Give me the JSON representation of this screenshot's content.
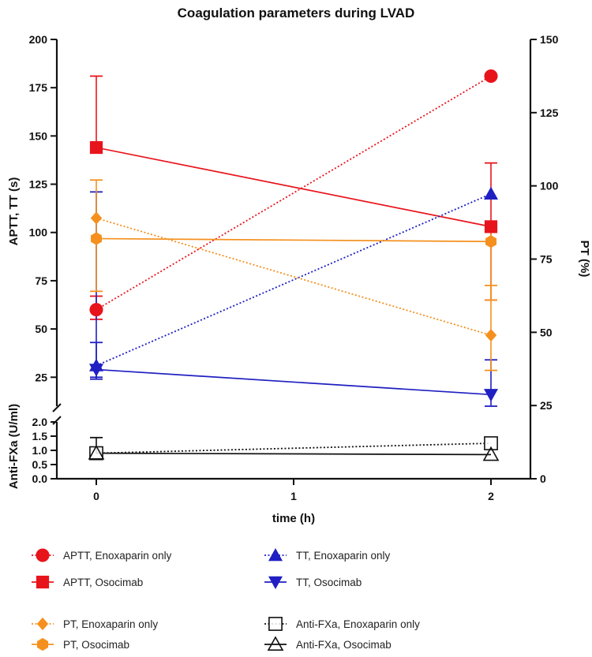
{
  "chart_data": {
    "type": "line",
    "title": "Coagulation parameters during LVAD",
    "xlabel": "time (h)",
    "x_ticks": [
      "0",
      "1",
      "2"
    ],
    "xlim": [
      -0.2,
      2.2
    ],
    "ylabel_left_upper": "APTT, TT (s)",
    "ylabel_left_lower": "Anti-FXa (U/ml)",
    "ylabel_right": "PT (%)",
    "y_left_upper": {
      "range": [
        10,
        200
      ],
      "ticks": [
        {
          "value": 25,
          "label": "25"
        },
        {
          "value": 50,
          "label": "50"
        },
        {
          "value": 75,
          "label": "75"
        },
        {
          "value": 100,
          "label": "100"
        },
        {
          "value": 125,
          "label": "125"
        },
        {
          "value": 150,
          "label": "150"
        },
        {
          "value": 175,
          "label": "175"
        },
        {
          "value": 200,
          "label": "200"
        }
      ]
    },
    "y_left_lower": {
      "range": [
        0,
        2
      ],
      "ticks": [
        {
          "value": 0,
          "label": "0.0"
        },
        {
          "value": 0.5,
          "label": "0.5"
        },
        {
          "value": 1,
          "label": "1.0"
        },
        {
          "value": 1.5,
          "label": "1.5"
        },
        {
          "value": 2,
          "label": "2.0"
        }
      ]
    },
    "y_right": {
      "range": [
        0,
        150
      ],
      "ticks": [
        {
          "value": 0,
          "label": "0"
        },
        {
          "value": 25,
          "label": "25"
        },
        {
          "value": 50,
          "label": "50"
        },
        {
          "value": 75,
          "label": "75"
        },
        {
          "value": 100,
          "label": "100"
        },
        {
          "value": 125,
          "label": "125"
        },
        {
          "value": 150,
          "label": "150"
        }
      ]
    },
    "series": [
      {
        "name": "APTT, Enoxaparin only",
        "axis": "left_upper",
        "color": "#e8141c",
        "marker": "circle",
        "line": "dotted",
        "x": [
          0,
          2
        ],
        "y": [
          60,
          181
        ],
        "err_low": [
          55,
          null
        ],
        "err_high": [
          67,
          null
        ]
      },
      {
        "name": "APTT, Osocimab",
        "axis": "left_upper",
        "color": "#e8141c",
        "marker": "square",
        "line": "solid",
        "x": [
          0,
          2
        ],
        "y": [
          144,
          103
        ],
        "err_low": [
          null,
          65
        ],
        "err_high": [
          181,
          136
        ]
      },
      {
        "name": "TT, Enoxaparin only",
        "axis": "left_upper",
        "color": "#1f1fc2",
        "marker": "triangle-up",
        "line": "dotted",
        "x": [
          0,
          2
        ],
        "y": [
          31,
          120
        ],
        "err_low": [
          25,
          null
        ],
        "err_high": [
          43,
          null
        ]
      },
      {
        "name": "TT, Osocimab",
        "axis": "left_upper",
        "color": "#1f1fc2",
        "marker": "triangle-down",
        "line": "solid",
        "x": [
          0,
          2
        ],
        "y": [
          29,
          16
        ],
        "err_low": [
          24,
          10
        ],
        "err_high": [
          121,
          34
        ]
      },
      {
        "name": "PT, Enoxaparin only",
        "axis": "right",
        "color": "#f5901e",
        "marker": "diamond",
        "line": "dotted",
        "x": [
          0,
          2
        ],
        "y": [
          89,
          49
        ],
        "err_low": [
          null,
          37
        ],
        "err_high": [
          null,
          66
        ]
      },
      {
        "name": "PT, Osocimab",
        "axis": "right",
        "color": "#f5901e",
        "marker": "hexagon",
        "line": "solid",
        "x": [
          0,
          2
        ],
        "y": [
          82,
          81
        ],
        "err_low": [
          64,
          61
        ],
        "err_high": [
          102,
          86
        ]
      },
      {
        "name": "Anti-FXa, Enoxaparin only",
        "axis": "left_lower",
        "color": "#111111",
        "marker": "open-square",
        "line": "dotted",
        "x": [
          0,
          2
        ],
        "y": [
          0.9,
          1.25
        ],
        "err_low": [
          null,
          null
        ],
        "err_high": [
          1.45,
          null
        ]
      },
      {
        "name": "Anti-FXa, Osocimab",
        "axis": "left_lower",
        "color": "#111111",
        "marker": "open-triangle",
        "line": "solid",
        "x": [
          0,
          2
        ],
        "y": [
          0.9,
          0.85
        ],
        "err_low": [
          null,
          null
        ],
        "err_high": [
          null,
          null
        ]
      }
    ],
    "legend_position": "bottom"
  }
}
